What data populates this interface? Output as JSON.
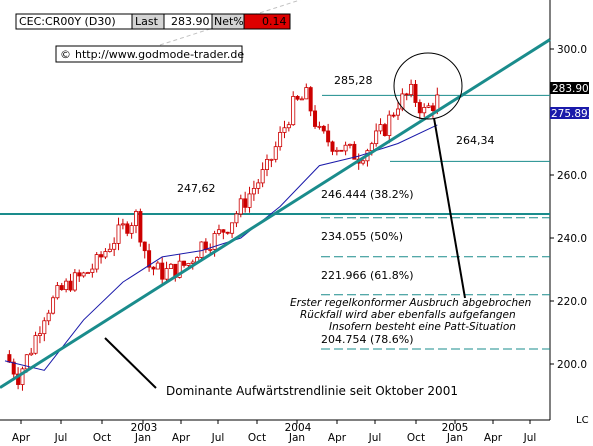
{
  "header": {
    "symbol": "CEC:CR00Y (D30)",
    "last_label": "Last",
    "last_value": "283.90",
    "netpct_label": "Net%",
    "netpct_value": "0.14",
    "source": "http://www.godmode-trader.de",
    "copyright_symbol": "©"
  },
  "price_boxes": {
    "last": "283.90",
    "ma": "275.893"
  },
  "annotations": {
    "high_2004": "285,28",
    "high_2003": "247,62",
    "support_2004": "264,34",
    "fib_382": "246.444 (38.2%)",
    "fib_50": "234.055 (50%)",
    "fib_618": "221.966 (61.8%)",
    "fib_786": "204.754 (78.6%)",
    "trendline_note": "Dominante Aufwärtstrendlinie seit Oktober 2001",
    "breakout_line1": "Erster regelkonformer Ausbruch abgebrochen",
    "breakout_line2": "Rückfall wird aber ebenfalls aufgefangen",
    "breakout_line3": "Insofern besteht eine Patt-Situation"
  },
  "corner_label": "LC",
  "colors": {
    "candle": "#cc0000",
    "trendline": "#1a8c8c",
    "level_line": "#1a8c8c",
    "moving_average": "#1a1aaa",
    "last_box": "#000000",
    "ma_box": "#1a1aaa",
    "net_box": "#dd0000"
  },
  "chart_data": {
    "type": "candlestick",
    "title": "CEC:CR00Y (D30)",
    "x_axis": {
      "tick_labels": [
        "Apr",
        "Jul",
        "Oct",
        "Jan",
        "Apr",
        "Jul",
        "Oct",
        "Jan",
        "Apr",
        "Jul",
        "Oct",
        "Jan",
        "Apr",
        "Jul"
      ],
      "year_labels": [
        "2003",
        "2004",
        "2005"
      ],
      "range": [
        "2002-03",
        "2005-08"
      ]
    },
    "y_axis": {
      "ticks": [
        200.0,
        220.0,
        240.0,
        260.0,
        280.0,
        300.0
      ],
      "ylim": [
        190,
        312
      ],
      "position": "right"
    },
    "price_series": {
      "name": "CEC",
      "x": [
        "2002-03",
        "2002-04",
        "2002-05",
        "2002-06",
        "2002-07",
        "2002-08",
        "2002-09",
        "2002-10",
        "2002-11",
        "2002-12",
        "2003-01",
        "2003-02",
        "2003-03",
        "2003-04",
        "2003-05",
        "2003-06",
        "2003-07",
        "2003-08",
        "2003-09",
        "2003-10",
        "2003-11",
        "2003-12",
        "2004-01",
        "2004-02",
        "2004-03",
        "2004-04",
        "2004-05",
        "2004-06",
        "2004-07",
        "2004-08",
        "2004-09",
        "2004-10",
        "2004-11",
        "2004-12"
      ],
      "y": [
        203,
        196,
        205,
        216,
        222,
        226,
        228,
        232,
        238,
        243,
        247,
        231,
        229,
        230,
        232,
        238,
        240,
        244,
        250,
        256,
        262,
        272,
        282,
        285,
        273,
        270,
        268,
        266,
        270,
        275,
        283,
        286,
        280,
        283.9
      ]
    },
    "moving_average": {
      "name": "MA",
      "x": [
        "2002-03",
        "2002-06",
        "2002-09",
        "2002-12",
        "2003-03",
        "2003-06",
        "2003-09",
        "2003-12",
        "2004-03",
        "2004-06",
        "2004-09",
        "2004-12"
      ],
      "y": [
        201,
        198,
        214,
        226,
        234,
        236,
        240,
        250,
        263,
        266,
        270,
        275.893
      ]
    },
    "trendline": {
      "points": [
        [
          "2002-02",
          192.5
        ],
        [
          "2005-08",
          303
        ]
      ]
    },
    "horizontal_levels": [
      285.28,
      264.34,
      247.62
    ],
    "fibonacci_levels": [
      {
        "label": "38.2%",
        "value": 246.444
      },
      {
        "label": "50%",
        "value": 234.055
      },
      {
        "label": "61.8%",
        "value": 221.966
      },
      {
        "label": "78.6%",
        "value": 204.754
      }
    ],
    "grid": false,
    "legend": "none"
  }
}
